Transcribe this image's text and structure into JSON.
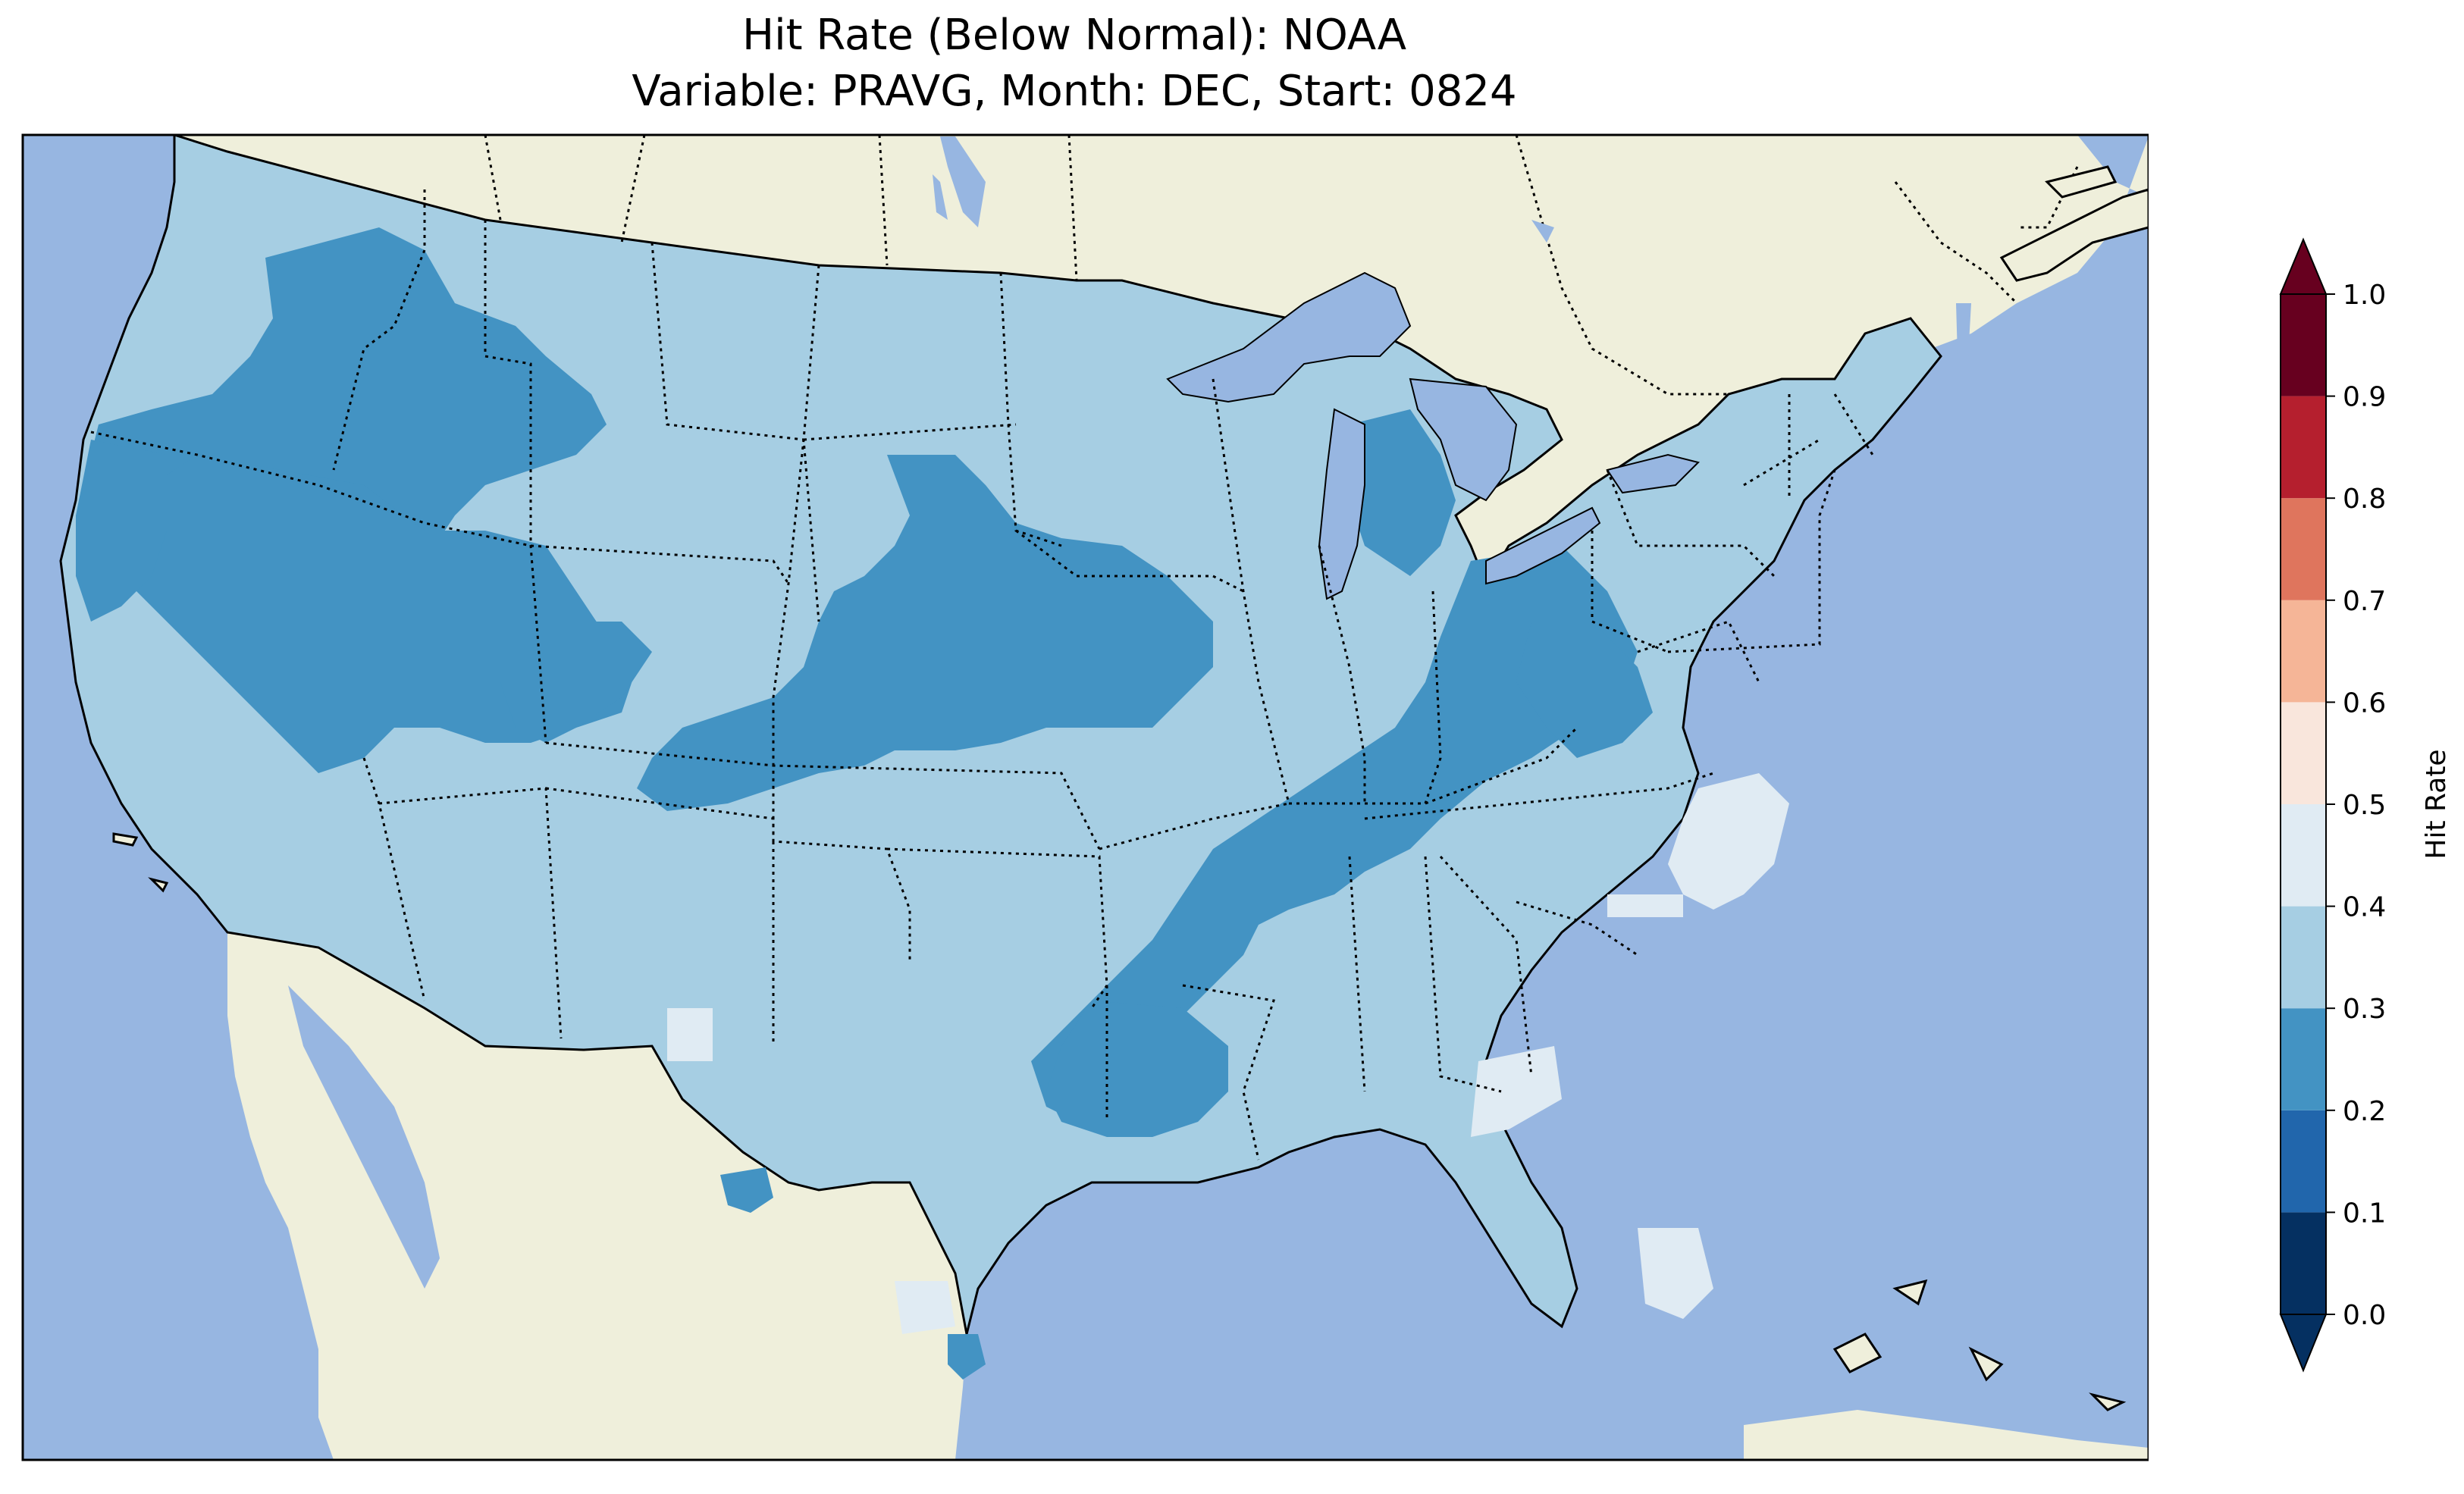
{
  "title": {
    "line1": "Hit Rate (Below Normal): NOAA",
    "line2": "Variable: PRAVG, Month: DEC, Start: 0824"
  },
  "colors": {
    "ocean": "#97b6e1",
    "land": "#efefdb",
    "lake": "#97b6e1"
  },
  "colorbar": {
    "label": "Hit Rate",
    "ticks": [
      "0.0",
      "0.1",
      "0.2",
      "0.3",
      "0.4",
      "0.5",
      "0.6",
      "0.7",
      "0.8",
      "0.9",
      "1.0"
    ],
    "bins": [
      {
        "from": 0.0,
        "to": 0.1,
        "color": "#053061"
      },
      {
        "from": 0.1,
        "to": 0.2,
        "color": "#2166ac"
      },
      {
        "from": 0.2,
        "to": 0.3,
        "color": "#4393c3"
      },
      {
        "from": 0.3,
        "to": 0.4,
        "color": "#a6cee3"
      },
      {
        "from": 0.4,
        "to": 0.5,
        "color": "#e0ebf3"
      },
      {
        "from": 0.5,
        "to": 0.6,
        "color": "#f9e6dc"
      },
      {
        "from": 0.6,
        "to": 0.7,
        "color": "#f5b597"
      },
      {
        "from": 0.7,
        "to": 0.8,
        "color": "#df755d"
      },
      {
        "from": 0.8,
        "to": 0.9,
        "color": "#b51f2e"
      },
      {
        "from": 0.9,
        "to": 1.0,
        "color": "#67001f"
      }
    ],
    "extend": "both"
  },
  "map": {
    "region": "Contiguous United States",
    "lon_range": [
      -125,
      -67
    ],
    "lat_range": [
      24,
      50
    ],
    "dominant_bin": "0.3-0.4",
    "features": [
      "coastlines",
      "country borders",
      "state borders (dotted)",
      "lakes"
    ]
  }
}
